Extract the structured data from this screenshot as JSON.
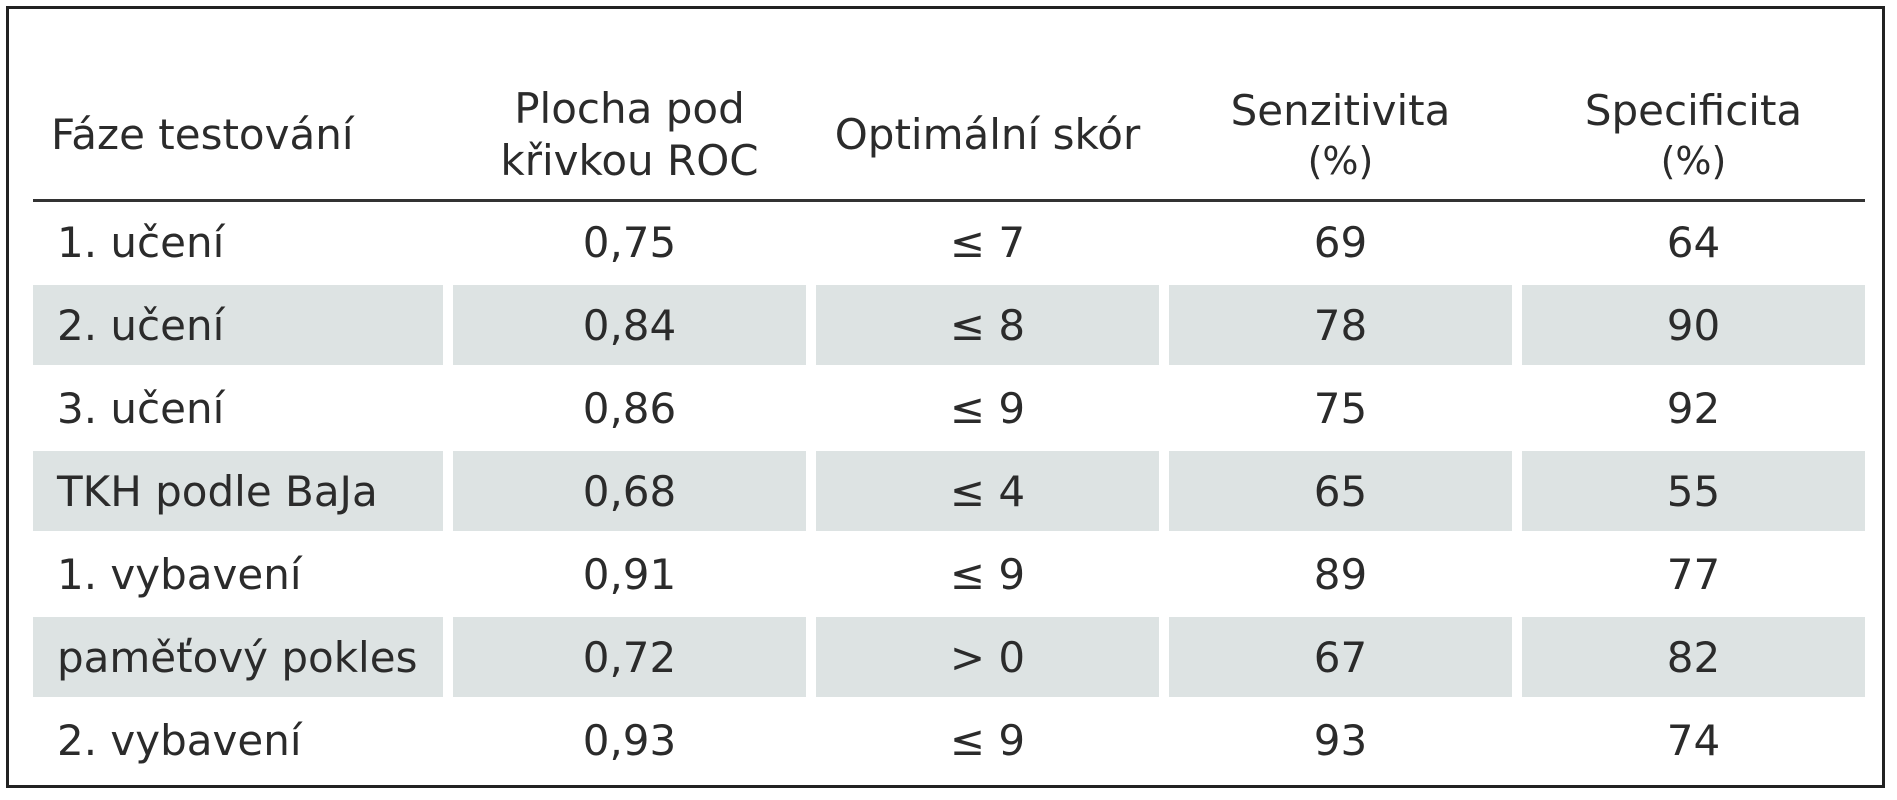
{
  "table": {
    "headers": [
      {
        "line1": "Fáze testování",
        "line2": ""
      },
      {
        "line1": "Plocha pod",
        "line2": "křivkou ROC"
      },
      {
        "line1": "Optimální skór",
        "line2": ""
      },
      {
        "line1": "Senzitivita",
        "line2": "(%)"
      },
      {
        "line1": "Specificita",
        "line2": "(%)"
      }
    ],
    "rows": [
      [
        "1. učení",
        "0,75",
        "≤ 7",
        "69",
        "64"
      ],
      [
        "2. učení",
        "0,84",
        "≤ 8",
        "78",
        "90"
      ],
      [
        "3. učení",
        "0,86",
        "≤ 9",
        "75",
        "92"
      ],
      [
        "TKH podle BaJa",
        "0,68",
        "≤ 4",
        "65",
        "55"
      ],
      [
        "1. vybavení",
        "0,91",
        "≤ 9",
        "89",
        "77"
      ],
      [
        "paměťový pokles",
        "0,72",
        "> 0",
        "67",
        "82"
      ],
      [
        "2. vybavení",
        "0,93",
        "≤ 9",
        "93",
        "74"
      ]
    ],
    "shaded_row_color": "#dde3e3"
  }
}
